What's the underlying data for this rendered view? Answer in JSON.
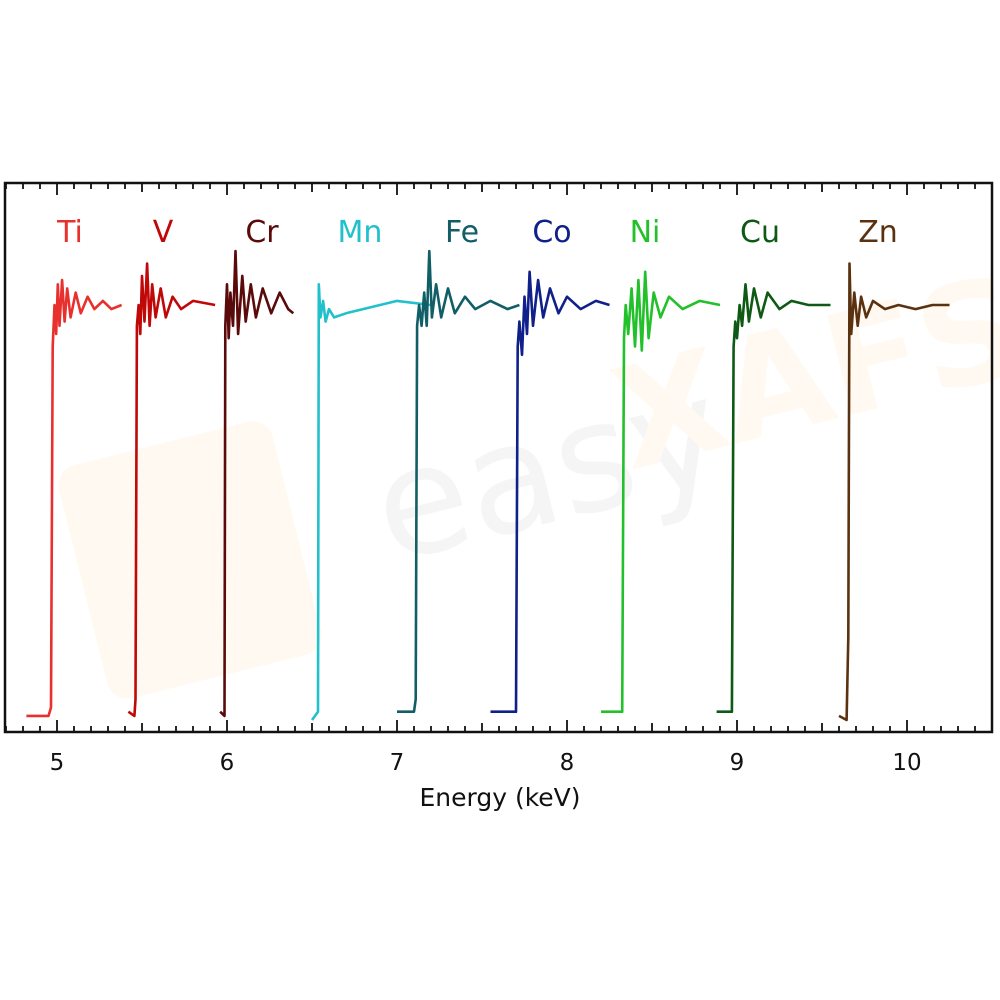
{
  "chart_data": {
    "type": "line",
    "title": "",
    "xlabel": "Energy (keV)",
    "ylabel": "",
    "xlim": [
      4.69,
      10.5
    ],
    "ylim": [
      -0.03,
      1.29
    ],
    "x_ticks": [
      "5",
      "6",
      "7",
      "8",
      "9",
      "10"
    ],
    "x_tick_values": [
      5,
      6,
      7,
      8,
      9,
      10
    ],
    "minor_tick_step": 0.1,
    "y_ticks_shown": false,
    "grid": false,
    "legend": "inline labels above each spectrum",
    "watermark": "easy XAFS",
    "series": [
      {
        "name": "Ti",
        "color": "#e8302e",
        "points": [
          [
            4.82,
            0.01
          ],
          [
            4.95,
            0.01
          ],
          [
            4.965,
            0.03
          ],
          [
            4.975,
            0.9
          ],
          [
            4.985,
            1.0
          ],
          [
            4.995,
            0.93
          ],
          [
            5.005,
            1.05
          ],
          [
            5.015,
            0.95
          ],
          [
            5.03,
            1.06
          ],
          [
            5.045,
            0.96
          ],
          [
            5.06,
            1.04
          ],
          [
            5.08,
            0.97
          ],
          [
            5.11,
            1.03
          ],
          [
            5.14,
            0.98
          ],
          [
            5.18,
            1.02
          ],
          [
            5.22,
            0.99
          ],
          [
            5.27,
            1.01
          ],
          [
            5.32,
            0.99
          ],
          [
            5.38,
            1.0
          ]
        ]
      },
      {
        "name": "V",
        "color": "#c00808",
        "points": [
          [
            5.42,
            0.02
          ],
          [
            5.455,
            0.01
          ],
          [
            5.462,
            0.05
          ],
          [
            5.47,
            0.95
          ],
          [
            5.48,
            1.0
          ],
          [
            5.49,
            0.93
          ],
          [
            5.5,
            1.07
          ],
          [
            5.515,
            0.96
          ],
          [
            5.53,
            1.1
          ],
          [
            5.545,
            0.95
          ],
          [
            5.56,
            1.05
          ],
          [
            5.58,
            0.97
          ],
          [
            5.61,
            1.04
          ],
          [
            5.64,
            0.97
          ],
          [
            5.68,
            1.02
          ],
          [
            5.73,
            0.99
          ],
          [
            5.8,
            1.01
          ],
          [
            5.93,
            1.0
          ]
        ]
      },
      {
        "name": "Cr",
        "color": "#5a0a0a",
        "points": [
          [
            5.96,
            0.02
          ],
          [
            5.985,
            0.01
          ],
          [
            5.99,
            0.95
          ],
          [
            6.0,
            1.05
          ],
          [
            6.01,
            0.92
          ],
          [
            6.02,
            1.03
          ],
          [
            6.035,
            0.95
          ],
          [
            6.05,
            1.13
          ],
          [
            6.065,
            0.93
          ],
          [
            6.09,
            1.07
          ],
          [
            6.11,
            0.96
          ],
          [
            6.14,
            1.05
          ],
          [
            6.17,
            0.97
          ],
          [
            6.21,
            1.04
          ],
          [
            6.26,
            0.98
          ],
          [
            6.31,
            1.03
          ],
          [
            6.36,
            0.99
          ],
          [
            6.39,
            0.98
          ]
        ]
      },
      {
        "name": "Mn",
        "color": "#22c0cc",
        "points": [
          [
            6.5,
            0.0
          ],
          [
            6.535,
            0.02
          ],
          [
            6.54,
            1.05
          ],
          [
            6.55,
            0.97
          ],
          [
            6.565,
            1.01
          ],
          [
            6.58,
            0.96
          ],
          [
            6.6,
            0.99
          ],
          [
            6.63,
            0.97
          ],
          [
            6.7,
            0.98
          ],
          [
            6.8,
            0.99
          ],
          [
            6.9,
            1.0
          ],
          [
            7.0,
            1.01
          ],
          [
            7.2,
            1.0
          ]
        ]
      },
      {
        "name": "Fe",
        "color": "#125e66",
        "points": [
          [
            7.0,
            0.02
          ],
          [
            7.1,
            0.02
          ],
          [
            7.11,
            0.05
          ],
          [
            7.118,
            0.95
          ],
          [
            7.13,
            1.0
          ],
          [
            7.145,
            0.95
          ],
          [
            7.16,
            1.03
          ],
          [
            7.175,
            0.95
          ],
          [
            7.19,
            1.13
          ],
          [
            7.205,
            0.97
          ],
          [
            7.23,
            1.05
          ],
          [
            7.26,
            0.97
          ],
          [
            7.3,
            1.04
          ],
          [
            7.34,
            0.98
          ],
          [
            7.4,
            1.02
          ],
          [
            7.46,
            0.99
          ],
          [
            7.55,
            1.01
          ],
          [
            7.65,
            0.99
          ],
          [
            7.72,
            1.0
          ]
        ]
      },
      {
        "name": "Co",
        "color": "#10208a",
        "points": [
          [
            7.55,
            0.02
          ],
          [
            7.7,
            0.02
          ],
          [
            7.71,
            0.9
          ],
          [
            7.72,
            0.96
          ],
          [
            7.735,
            0.88
          ],
          [
            7.75,
            1.02
          ],
          [
            7.765,
            0.93
          ],
          [
            7.78,
            1.08
          ],
          [
            7.8,
            0.95
          ],
          [
            7.83,
            1.06
          ],
          [
            7.86,
            0.97
          ],
          [
            7.9,
            1.04
          ],
          [
            7.95,
            0.98
          ],
          [
            8.0,
            1.02
          ],
          [
            8.08,
            0.99
          ],
          [
            8.17,
            1.01
          ],
          [
            8.25,
            1.0
          ]
        ]
      },
      {
        "name": "Ni",
        "color": "#22c02a",
        "points": [
          [
            8.2,
            0.02
          ],
          [
            8.325,
            0.02
          ],
          [
            8.335,
            0.92
          ],
          [
            8.345,
            1.0
          ],
          [
            8.36,
            0.93
          ],
          [
            8.38,
            1.04
          ],
          [
            8.4,
            0.9
          ],
          [
            8.42,
            1.06
          ],
          [
            8.44,
            0.89
          ],
          [
            8.46,
            1.08
          ],
          [
            8.48,
            0.92
          ],
          [
            8.51,
            1.03
          ],
          [
            8.55,
            0.97
          ],
          [
            8.6,
            1.02
          ],
          [
            8.68,
            0.99
          ],
          [
            8.78,
            1.01
          ],
          [
            8.9,
            1.0
          ]
        ]
      },
      {
        "name": "Cu",
        "color": "#0e5a14",
        "points": [
          [
            8.88,
            0.02
          ],
          [
            8.97,
            0.02
          ],
          [
            8.98,
            0.9
          ],
          [
            8.99,
            0.96
          ],
          [
            9.0,
            0.92
          ],
          [
            9.015,
            1.0
          ],
          [
            9.03,
            0.95
          ],
          [
            9.05,
            1.05
          ],
          [
            9.07,
            0.96
          ],
          [
            9.1,
            1.04
          ],
          [
            9.14,
            0.97
          ],
          [
            9.18,
            1.03
          ],
          [
            9.25,
            0.99
          ],
          [
            9.32,
            1.01
          ],
          [
            9.42,
            1.0
          ],
          [
            9.55,
            1.0
          ]
        ]
      },
      {
        "name": "Zn",
        "color": "#5a3210",
        "points": [
          [
            9.6,
            0.01
          ],
          [
            9.645,
            0.0
          ],
          [
            9.655,
            0.2
          ],
          [
            9.662,
            1.1
          ],
          [
            9.672,
            0.93
          ],
          [
            9.69,
            1.03
          ],
          [
            9.71,
            0.95
          ],
          [
            9.73,
            1.02
          ],
          [
            9.76,
            0.97
          ],
          [
            9.8,
            1.01
          ],
          [
            9.87,
            0.99
          ],
          [
            9.95,
            1.0
          ],
          [
            10.05,
            0.99
          ],
          [
            10.15,
            1.0
          ],
          [
            10.25,
            1.0
          ]
        ]
      }
    ]
  }
}
